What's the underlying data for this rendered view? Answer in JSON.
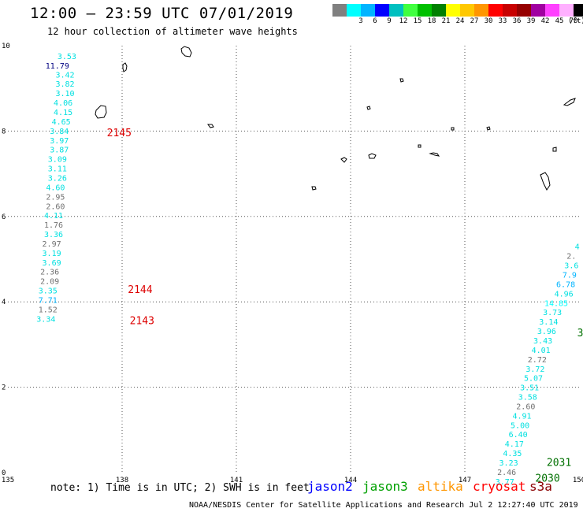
{
  "title": "12:00 – 23:59 UTC 07/01/2019",
  "subtitle": "12 hour collection of altimeter wave heights",
  "colorbar": {
    "unit_label": "(ft)",
    "cells": [
      {
        "color": "#808080",
        "label": ""
      },
      {
        "color": "#00ffff",
        "label": "3"
      },
      {
        "color": "#00b4ff",
        "label": "6"
      },
      {
        "color": "#0000ff",
        "label": "9"
      },
      {
        "color": "#00c0c0",
        "label": "12"
      },
      {
        "color": "#40ff40",
        "label": "15"
      },
      {
        "color": "#00c000",
        "label": "18"
      },
      {
        "color": "#008000",
        "label": "21"
      },
      {
        "color": "#ffff00",
        "label": "24"
      },
      {
        "color": "#ffc800",
        "label": "27"
      },
      {
        "color": "#ff9600",
        "label": "30"
      },
      {
        "color": "#ff0000",
        "label": "33"
      },
      {
        "color": "#c80000",
        "label": "36"
      },
      {
        "color": "#960000",
        "label": "39"
      },
      {
        "color": "#a000a0",
        "label": "42"
      },
      {
        "color": "#ff40ff",
        "label": "45"
      },
      {
        "color": "#ffb0ff",
        "label": "70"
      },
      {
        "color": "#000000",
        "label": ""
      }
    ]
  },
  "axes": {
    "x_ticks": [
      135,
      138,
      141,
      144,
      147,
      150
    ],
    "y_ticks": [
      0,
      2,
      4,
      6,
      8,
      10
    ],
    "lon_range": [
      135,
      150
    ],
    "lat_range": [
      0,
      10
    ]
  },
  "track_left": [
    {
      "lat": 9.76,
      "text": "3.53",
      "color": "#00e0e0"
    },
    {
      "lat": 9.54,
      "text": "11.79",
      "color": "#000080"
    },
    {
      "lat": 9.33,
      "text": "3.42",
      "color": "#00e0e0"
    },
    {
      "lat": 9.11,
      "text": "3.82",
      "color": "#00e0e0"
    },
    {
      "lat": 8.89,
      "text": "3.10",
      "color": "#00e0e0"
    },
    {
      "lat": 8.67,
      "text": "4.06",
      "color": "#00e0e0"
    },
    {
      "lat": 8.45,
      "text": "4.15",
      "color": "#00e0e0"
    },
    {
      "lat": 8.23,
      "text": "4.65",
      "color": "#00e0e0"
    },
    {
      "lat": 8.01,
      "text": "3.84",
      "color": "#00e0e0"
    },
    {
      "lat": 7.79,
      "text": "3.97",
      "color": "#00e0e0"
    },
    {
      "lat": 7.57,
      "text": "3.87",
      "color": "#00e0e0"
    },
    {
      "lat": 7.35,
      "text": "3.09",
      "color": "#00e0e0"
    },
    {
      "lat": 7.13,
      "text": "3.11",
      "color": "#00e0e0"
    },
    {
      "lat": 6.91,
      "text": "3.26",
      "color": "#00e0e0"
    },
    {
      "lat": 6.69,
      "text": "4.60",
      "color": "#00e0e0"
    },
    {
      "lat": 6.47,
      "text": "2.95",
      "color": "#707070"
    },
    {
      "lat": 6.25,
      "text": "2.60",
      "color": "#707070"
    },
    {
      "lat": 6.03,
      "text": "4.11",
      "color": "#00e0e0"
    },
    {
      "lat": 5.81,
      "text": "1.76",
      "color": "#707070"
    },
    {
      "lat": 5.59,
      "text": "3.36",
      "color": "#00e0e0"
    },
    {
      "lat": 5.37,
      "text": "2.97",
      "color": "#707070"
    },
    {
      "lat": 5.15,
      "text": "3.19",
      "color": "#00e0e0"
    },
    {
      "lat": 4.93,
      "text": "3.69",
      "color": "#00e0e0"
    },
    {
      "lat": 4.71,
      "text": "2.36",
      "color": "#707070"
    },
    {
      "lat": 4.49,
      "text": "2.09",
      "color": "#707070"
    },
    {
      "lat": 4.27,
      "text": "3.35",
      "color": "#00e0e0"
    },
    {
      "lat": 4.05,
      "text": "7.71",
      "color": "#00b4ff"
    },
    {
      "lat": 3.83,
      "text": "1.52",
      "color": "#707070"
    },
    {
      "lat": 3.61,
      "text": "3.34",
      "color": "#00e0e0"
    }
  ],
  "track_left_x": [
    136.55,
    136.3,
    136.5,
    136.5,
    136.5,
    136.45,
    136.45,
    136.4,
    136.35,
    136.35,
    136.35,
    136.3,
    136.3,
    136.3,
    136.25,
    136.25,
    136.25,
    136.2,
    136.2,
    136.2,
    136.15,
    136.15,
    136.15,
    136.1,
    136.1,
    136.05,
    136.05,
    136.05,
    136.0
  ],
  "track_right": [
    {
      "lat": 5.3,
      "text": "4",
      "color": "#00e0e0",
      "lon": 149.95
    },
    {
      "lat": 5.08,
      "text": "2.",
      "color": "#707070",
      "lon": 149.8
    },
    {
      "lat": 4.86,
      "text": "3.6",
      "color": "#00e0e0",
      "lon": 149.8
    },
    {
      "lat": 4.64,
      "text": "7.9",
      "color": "#00b4ff",
      "lon": 149.75
    },
    {
      "lat": 4.42,
      "text": "6.78",
      "color": "#00b4ff",
      "lon": 149.65
    },
    {
      "lat": 4.2,
      "text": "4.96",
      "color": "#00e0e0",
      "lon": 149.6
    },
    {
      "lat": 3.98,
      "text": "14.85",
      "color": "#00ffff",
      "lon": 149.4
    },
    {
      "lat": 3.76,
      "text": "3.73",
      "color": "#00e0e0",
      "lon": 149.3
    },
    {
      "lat": 3.54,
      "text": "3.14",
      "color": "#00e0e0",
      "lon": 149.2
    },
    {
      "lat": 3.32,
      "text": "3.96",
      "color": "#00e0e0",
      "lon": 149.15
    },
    {
      "lat": 3.1,
      "text": "3.43",
      "color": "#00e0e0",
      "lon": 149.05
    },
    {
      "lat": 2.88,
      "text": "4.01",
      "color": "#00e0e0",
      "lon": 149.0
    },
    {
      "lat": 2.66,
      "text": "2.72",
      "color": "#707070",
      "lon": 148.9
    },
    {
      "lat": 2.44,
      "text": "3.72",
      "color": "#00e0e0",
      "lon": 148.85
    },
    {
      "lat": 2.22,
      "text": "5.07",
      "color": "#00e0e0",
      "lon": 148.8
    },
    {
      "lat": 2.0,
      "text": "3.51",
      "color": "#00e0e0",
      "lon": 148.7
    },
    {
      "lat": 1.78,
      "text": "3.58",
      "color": "#00e0e0",
      "lon": 148.65
    },
    {
      "lat": 1.56,
      "text": "2.60",
      "color": "#707070",
      "lon": 148.6
    },
    {
      "lat": 1.34,
      "text": "4.91",
      "color": "#00e0e0",
      "lon": 148.5
    },
    {
      "lat": 1.12,
      "text": "5.00",
      "color": "#00e0e0",
      "lon": 148.45
    },
    {
      "lat": 0.9,
      "text": "6.40",
      "color": "#00e0e0",
      "lon": 148.4
    },
    {
      "lat": 0.68,
      "text": "4.17",
      "color": "#00e0e0",
      "lon": 148.3
    },
    {
      "lat": 0.46,
      "text": "4.35",
      "color": "#00e0e0",
      "lon": 148.25
    },
    {
      "lat": 0.24,
      "text": "3.23",
      "color": "#00e0e0",
      "lon": 148.15
    },
    {
      "lat": 0.02,
      "text": "2.46",
      "color": "#707070",
      "lon": 148.1
    },
    {
      "lat": -0.2,
      "text": "3.77",
      "color": "#00e0e0",
      "lon": 148.05
    }
  ],
  "time_labels": [
    {
      "text": "2145",
      "color": "#dd0000",
      "lon": 137.6,
      "lat": 7.97
    },
    {
      "text": "2144",
      "color": "#dd0000",
      "lon": 138.15,
      "lat": 4.3
    },
    {
      "text": "2143",
      "color": "#dd0000",
      "lon": 138.2,
      "lat": 3.57
    },
    {
      "text": "2031",
      "color": "#007000",
      "lon": 149.15,
      "lat": 0.25
    },
    {
      "text": "2030",
      "color": "#007000",
      "lon": 148.85,
      "lat": -0.12
    },
    {
      "text": "3",
      "color": "#007000",
      "lon": 149.95,
      "lat": 3.28
    }
  ],
  "note": "note: 1) Time is in UTC; 2) SWH is in feet",
  "legend": [
    {
      "name": "jason2",
      "color": "#0000ff"
    },
    {
      "name": "jason3",
      "color": "#00a000"
    },
    {
      "name": "altika",
      "color": "#ff9600"
    },
    {
      "name": "cryosat",
      "color": "#ff0000"
    },
    {
      "name": "s3a",
      "color": "#8b0000"
    }
  ],
  "credit": "NOAA/NESDIS Center for Satellite Applications and Research   Jul  2 12:27:40 UTC 2019"
}
